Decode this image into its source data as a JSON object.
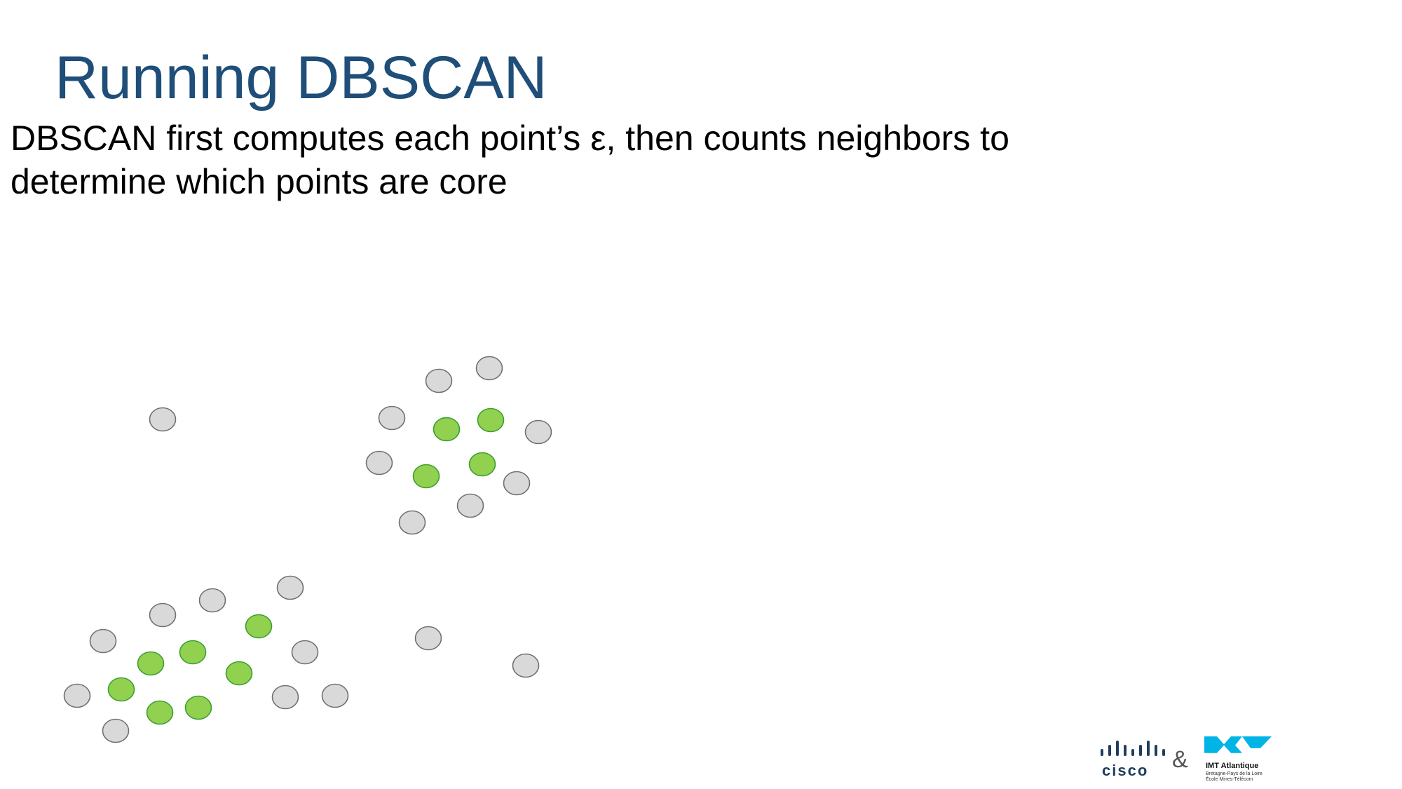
{
  "slide": {
    "title": "Running DBSCAN",
    "subtitle_line1": "DBSCAN first computes each point’s ε, then counts neighbors to",
    "subtitle_line2": "determine which points are core"
  },
  "legend_colors": {
    "core": "#92d050",
    "core_stroke": "#3aa02e",
    "other": "#d9d9d9",
    "other_stroke": "#707070",
    "title": "#1f4e79"
  },
  "logos": {
    "cisco": "cisco",
    "ampersand": "&",
    "imt_name": "IMT Atlantique",
    "imt_line1": "Bretagne-Pays de la Loire",
    "imt_line2": "École Mines-Télécom"
  }
}
